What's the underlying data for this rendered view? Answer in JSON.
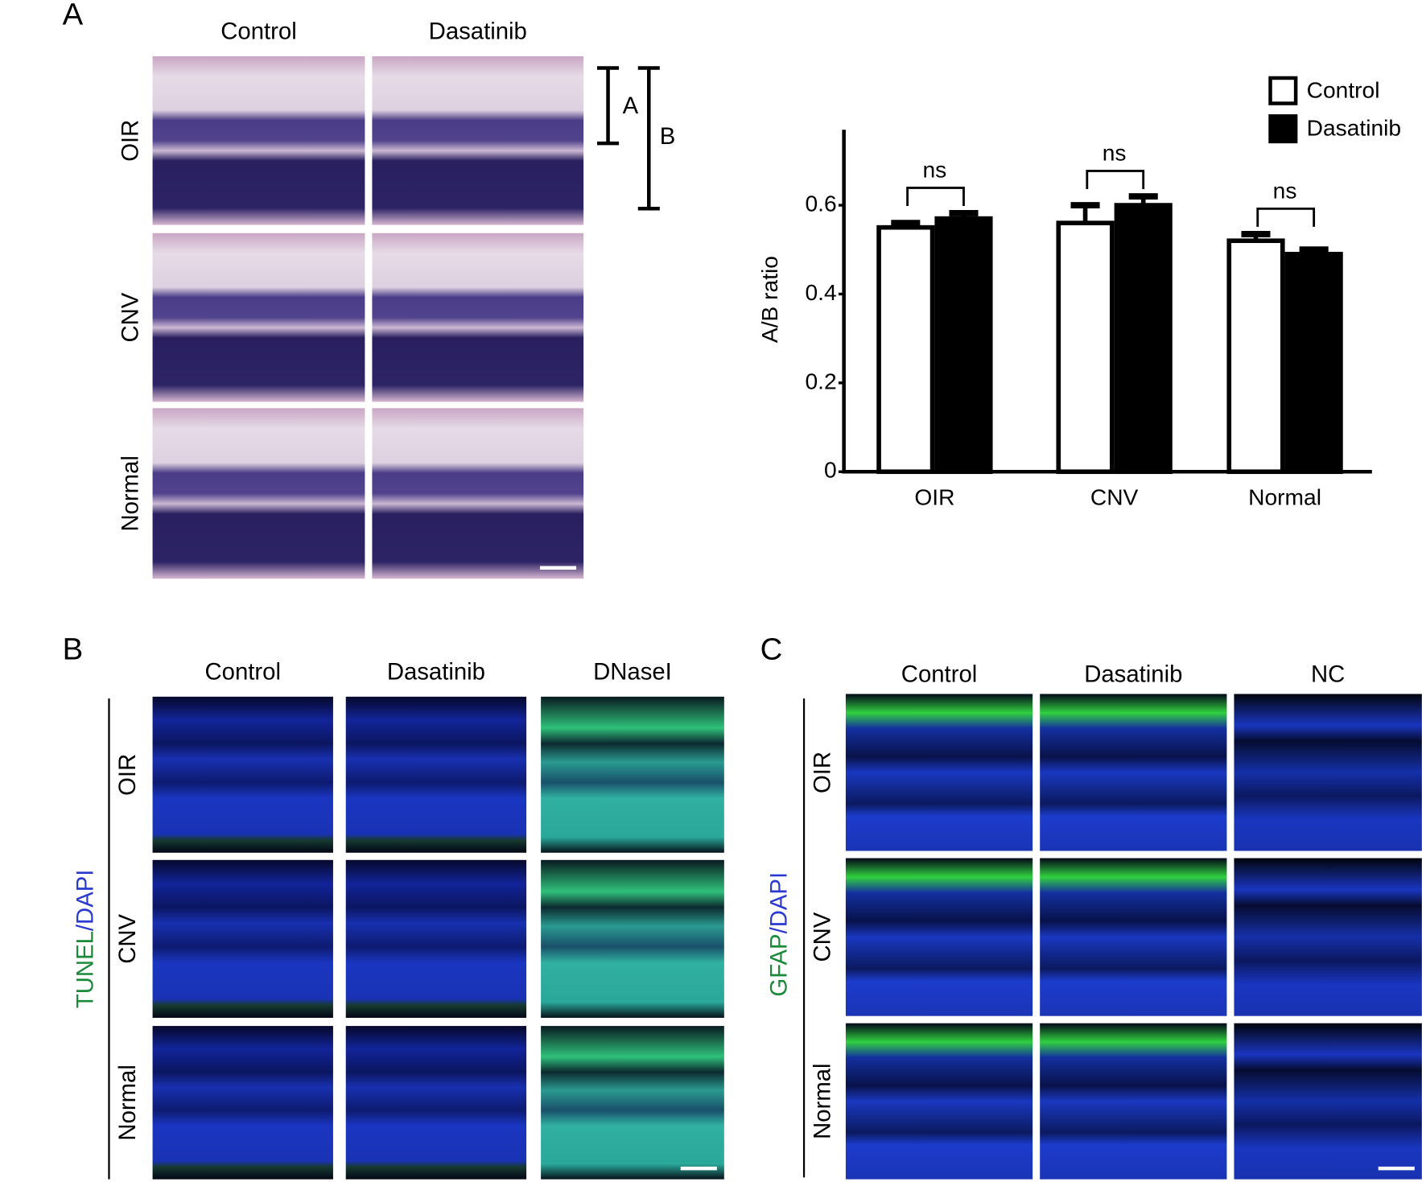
{
  "panel_a": {
    "label": "A",
    "columns": [
      "Control",
      "Dasatinib"
    ],
    "rows": [
      "OIR",
      "CNV",
      "Normal"
    ],
    "bracket_labels": [
      "A",
      "B"
    ]
  },
  "chart_data": {
    "type": "bar",
    "ylabel": "A/B ratio",
    "categories": [
      "OIR",
      "CNV",
      "Normal"
    ],
    "series": [
      {
        "name": "Control",
        "color": "#ffffff",
        "values": [
          0.55,
          0.56,
          0.52
        ],
        "errors": [
          0.01,
          0.04,
          0.015
        ]
      },
      {
        "name": "Dasatinib",
        "color": "#000000",
        "values": [
          0.57,
          0.6,
          0.49
        ],
        "errors": [
          0.012,
          0.02,
          0.01
        ]
      }
    ],
    "annotations": [
      "ns",
      "ns",
      "ns"
    ],
    "ylim": [
      0,
      0.77
    ],
    "yticks": [
      0,
      0.2,
      0.4,
      0.6
    ],
    "legend": "top-right"
  },
  "panel_b": {
    "label": "B",
    "stain": [
      "TUNEL",
      "/DAPI"
    ],
    "columns": [
      "Control",
      "Dasatinib",
      "DNaseI"
    ],
    "rows": [
      "OIR",
      "CNV",
      "Normal"
    ]
  },
  "panel_c": {
    "label": "C",
    "stain": [
      "GFAP",
      "/DAPI"
    ],
    "columns": [
      "Control",
      "Dasatinib",
      "NC"
    ],
    "rows": [
      "OIR",
      "CNV",
      "Normal"
    ]
  }
}
